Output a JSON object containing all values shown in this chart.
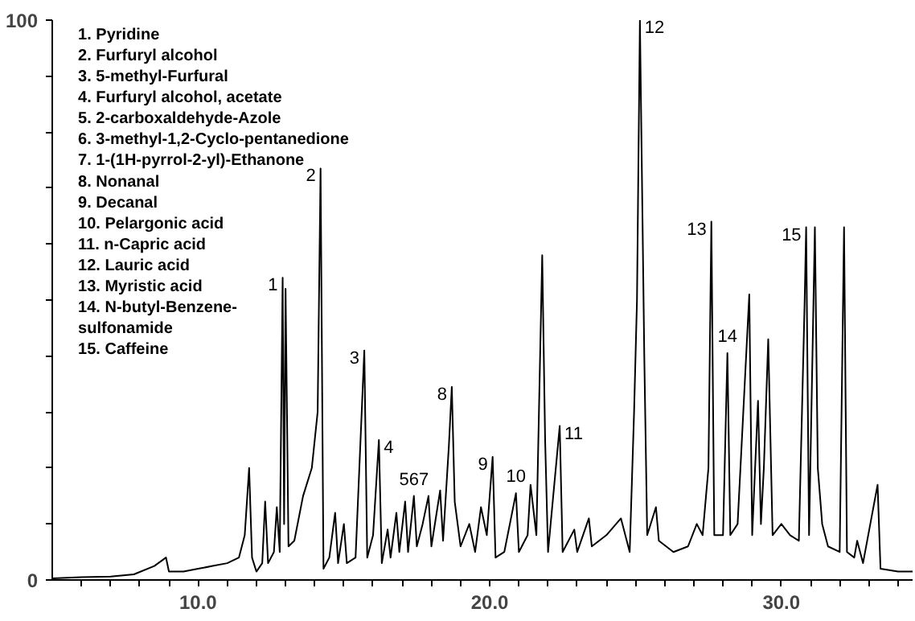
{
  "chart_data": {
    "type": "line",
    "color": "#000000",
    "line_style": "solid",
    "marker": "none",
    "grid": false,
    "legend": false,
    "xlim": [
      5.0,
      34.5
    ],
    "ylim": [
      0,
      100
    ],
    "xticks": [
      {
        "value": 6,
        "label": null
      },
      {
        "value": 7,
        "label": null
      },
      {
        "value": 8,
        "label": null
      },
      {
        "value": 9,
        "label": null
      },
      {
        "value": 10,
        "label": "10.0"
      },
      {
        "value": 11,
        "label": null
      },
      {
        "value": 12,
        "label": null
      },
      {
        "value": 13,
        "label": null
      },
      {
        "value": 14,
        "label": null
      },
      {
        "value": 15,
        "label": null
      },
      {
        "value": 16,
        "label": null
      },
      {
        "value": 17,
        "label": null
      },
      {
        "value": 18,
        "label": null
      },
      {
        "value": 19,
        "label": null
      },
      {
        "value": 20,
        "label": "20.0"
      },
      {
        "value": 21,
        "label": null
      },
      {
        "value": 22,
        "label": null
      },
      {
        "value": 23,
        "label": null
      },
      {
        "value": 24,
        "label": null
      },
      {
        "value": 25,
        "label": null
      },
      {
        "value": 26,
        "label": null
      },
      {
        "value": 27,
        "label": null
      },
      {
        "value": 28,
        "label": null
      },
      {
        "value": 29,
        "label": null
      },
      {
        "value": 30,
        "label": "30.0"
      },
      {
        "value": 31,
        "label": null
      },
      {
        "value": 32,
        "label": null
      },
      {
        "value": 33,
        "label": null
      },
      {
        "value": 34,
        "label": null
      }
    ],
    "yticks": [
      0,
      {
        "value": 10,
        "label": null
      },
      {
        "value": 20,
        "label": null
      },
      {
        "value": 30,
        "label": null
      },
      {
        "value": 40,
        "label": null
      },
      {
        "value": 50,
        "label": null
      },
      {
        "value": 60,
        "label": null
      },
      {
        "value": 70,
        "label": null
      },
      {
        "value": 80,
        "label": null
      },
      {
        "value": 90,
        "label": null
      },
      100
    ],
    "x": [
      5.0,
      6.0,
      7.0,
      7.8,
      8.5,
      8.9,
      9.0,
      9.5,
      10.0,
      10.5,
      11.0,
      11.4,
      11.6,
      11.75,
      11.85,
      12.0,
      12.2,
      12.3,
      12.4,
      12.6,
      12.7,
      12.8,
      12.9,
      12.95,
      13.0,
      13.1,
      13.3,
      13.6,
      13.9,
      14.1,
      14.2,
      14.3,
      14.5,
      14.7,
      14.8,
      15.0,
      15.1,
      15.4,
      15.7,
      15.8,
      16.0,
      16.2,
      16.3,
      16.5,
      16.6,
      16.8,
      16.9,
      17.1,
      17.2,
      17.4,
      17.5,
      17.7,
      17.9,
      18.0,
      18.3,
      18.4,
      18.6,
      18.7,
      18.8,
      19.0,
      19.3,
      19.5,
      19.7,
      19.9,
      20.1,
      20.2,
      20.5,
      20.9,
      21.0,
      21.3,
      21.4,
      21.6,
      21.8,
      21.9,
      22.0,
      22.4,
      22.5,
      22.9,
      23.0,
      23.4,
      23.5,
      24.0,
      24.5,
      24.8,
      24.95,
      25.05,
      25.15,
      25.3,
      25.4,
      25.7,
      25.8,
      26.3,
      26.8,
      27.1,
      27.3,
      27.5,
      27.6,
      27.7,
      28.0,
      28.15,
      28.25,
      28.5,
      28.9,
      29.0,
      29.2,
      29.3,
      29.4,
      29.55,
      29.7,
      30.0,
      30.3,
      30.6,
      30.8,
      30.85,
      30.95,
      31.15,
      31.25,
      31.4,
      31.6,
      32.0,
      32.15,
      32.25,
      32.5,
      32.6,
      32.8,
      33.3,
      33.4,
      34.0,
      34.5
    ],
    "values": [
      0.3,
      0.5,
      0.6,
      1.0,
      2.5,
      4.0,
      1.5,
      1.5,
      2.0,
      2.5,
      3.0,
      4.0,
      8,
      20,
      4,
      1.5,
      3,
      14,
      3,
      5,
      13,
      5,
      54,
      10,
      52,
      6,
      7,
      15,
      20,
      30,
      73.5,
      2,
      4,
      12,
      3,
      10,
      3,
      4,
      41,
      4,
      8,
      25,
      3,
      9,
      4,
      12,
      5,
      14,
      5,
      15,
      6,
      10,
      15,
      6,
      16,
      7,
      24,
      34.5,
      14,
      6,
      10,
      5,
      13,
      8,
      22,
      4,
      5,
      15.5,
      5,
      8,
      17,
      8,
      58,
      25,
      5,
      27.5,
      5,
      9,
      5,
      11,
      6,
      8,
      11,
      5,
      30,
      50,
      100,
      40,
      8,
      13,
      7,
      5,
      6,
      10,
      8,
      20,
      64,
      8,
      8,
      40.5,
      8,
      10,
      51,
      8,
      32,
      10,
      20,
      43,
      8,
      10,
      8,
      7,
      50,
      63,
      8,
      63,
      20,
      10,
      6,
      5,
      63,
      5,
      4,
      7,
      3,
      17,
      2,
      1.5,
      1.5
    ],
    "annotations": [
      "1. Pyridine",
      "2. Furfuryl alcohol",
      "3. 5-methyl-Furfural",
      "4. Furfuryl alcohol, acetate",
      "5. 2-carboxaldehyde-Azole",
      "6. 3-methyl-1,2-Cyclo-pentanedione",
      "7. 1-(1H-pyrrol-2-yl)-Ethanone",
      "8. Nonanal",
      "9. Decanal",
      "10. Pelargonic acid",
      "11. n-Capric acid",
      "12. Lauric acid",
      "13. Myristic acid",
      "14. N-butyl-Benzene-",
      "sulfonamide",
      "15. Caffeine",
      {
        "text": "1",
        "x": 12.9,
        "y": 54
      },
      {
        "text": "2",
        "x": 14.2,
        "y": 73.5
      },
      {
        "text": "3",
        "x": 15.7,
        "y": 41
      },
      {
        "text": "4",
        "x": 16.2,
        "y": 25
      },
      {
        "text": "567",
        "x": 17.4,
        "y": 15
      },
      {
        "text": "8",
        "x": 18.7,
        "y": 34.5
      },
      {
        "text": "9",
        "x": 20.1,
        "y": 22
      },
      {
        "text": "10",
        "x": 20.9,
        "y": 15.5
      },
      {
        "text": "11",
        "x": 22.4,
        "y": 27.5
      },
      {
        "text": "12",
        "x": 25.15,
        "y": 100
      },
      {
        "text": "13",
        "x": 27.6,
        "y": 64
      },
      {
        "text": "14",
        "x": 28.15,
        "y": 40.5
      },
      {
        "text": "15",
        "x": 30.85,
        "y": 63
      }
    ]
  }
}
